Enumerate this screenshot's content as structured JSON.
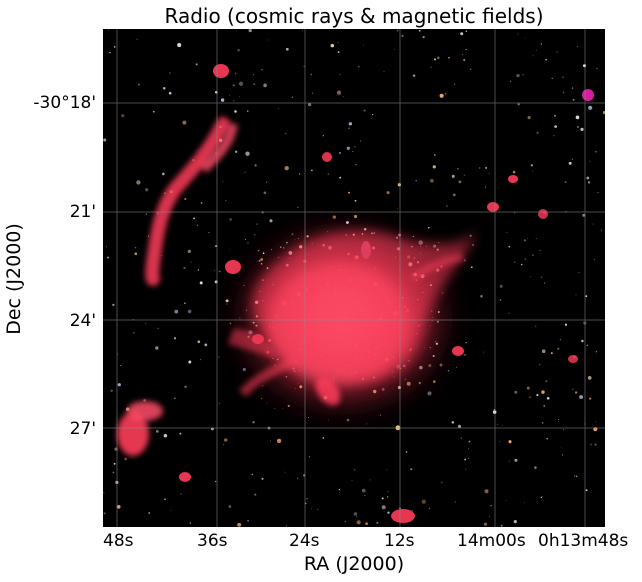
{
  "figure": {
    "title": "Radio (cosmic rays & magnetic fields)",
    "xlabel": "RA (J2000)",
    "ylabel": "Dec (J2000)",
    "yticks": [
      "-30°18'",
      "21'",
      "24'",
      "27'"
    ],
    "xticks": [
      "48s",
      "36s",
      "24s",
      "12s",
      "14m00s",
      "0h13m48s"
    ],
    "grid": true,
    "colors": {
      "background": "#000000",
      "radio_emission": "#ff3c5a",
      "grid": "#8c8c8c"
    }
  }
}
